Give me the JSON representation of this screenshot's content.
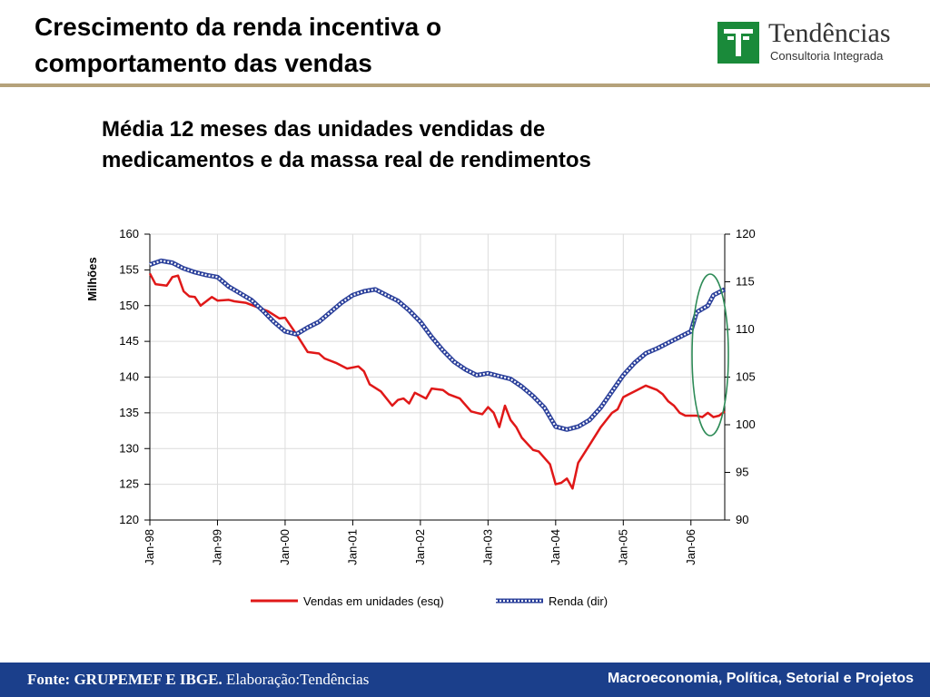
{
  "slide": {
    "title_line1": "Crescimento da renda incentiva o",
    "title_line2": "comportamento das vendas"
  },
  "logo": {
    "name": "Tendências",
    "subtitle": "Consultoria Integrada",
    "color": "#1a8a3a"
  },
  "footer": {
    "source_bold": "Fonte: GRUPEMEF E IBGE.",
    "source_rest": " Elaboração:Tendências",
    "tagline": "Macroeconomia, Política, Setorial e Projetos",
    "background": "#1b3f8b"
  },
  "chart_data": {
    "type": "line",
    "title_line1": "Média 12 meses das unidades vendidas de",
    "title_line2": "medicamentos e da massa real de rendimentos",
    "ylabel": "Milhões",
    "y2label": "",
    "ylim": [
      120,
      160
    ],
    "yticks": [
      120,
      125,
      130,
      135,
      140,
      145,
      150,
      155,
      160
    ],
    "y2lim": [
      90,
      120
    ],
    "y2ticks": [
      90,
      95,
      100,
      105,
      110,
      115,
      120
    ],
    "xlim": [
      "1998-01",
      "2006-07"
    ],
    "xticks": [
      "Jan-98",
      "Jan-99",
      "Jan-00",
      "Jan-01",
      "Jan-02",
      "Jan-03",
      "Jan-04",
      "Jan-05",
      "Jan-06"
    ],
    "grid": true,
    "legend_position": "bottom",
    "highlight": "ellipse around last months of 2006",
    "highlight_color": "#2e8b57",
    "series": [
      {
        "name": "Vendas em unidades (esq)",
        "axis": "left",
        "color": "#e01818",
        "style": "solid",
        "points": [
          [
            "1998-01",
            154.5
          ],
          [
            "1998-02",
            153.0
          ],
          [
            "1998-04",
            152.8
          ],
          [
            "1998-05",
            154.0
          ],
          [
            "1998-06",
            154.2
          ],
          [
            "1998-07",
            152.0
          ],
          [
            "1998-08",
            151.3
          ],
          [
            "1998-09",
            151.2
          ],
          [
            "1998-10",
            150.0
          ],
          [
            "1998-11",
            150.6
          ],
          [
            "1998-12",
            151.2
          ],
          [
            "1999-01",
            150.7
          ],
          [
            "1999-03",
            150.8
          ],
          [
            "1999-04",
            150.6
          ],
          [
            "1999-06",
            150.4
          ],
          [
            "1999-08",
            149.8
          ],
          [
            "1999-10",
            149.2
          ],
          [
            "1999-12",
            148.2
          ],
          [
            "2000-01",
            148.3
          ],
          [
            "2000-03",
            146.0
          ],
          [
            "2000-05",
            143.5
          ],
          [
            "2000-07",
            143.3
          ],
          [
            "2000-08",
            142.6
          ],
          [
            "2000-10",
            142.0
          ],
          [
            "2000-12",
            141.2
          ],
          [
            "2001-02",
            141.5
          ],
          [
            "2001-03",
            140.8
          ],
          [
            "2001-04",
            139.0
          ],
          [
            "2001-06",
            138.0
          ],
          [
            "2001-08",
            136.0
          ],
          [
            "2001-09",
            136.8
          ],
          [
            "2001-10",
            137.0
          ],
          [
            "2001-11",
            136.3
          ],
          [
            "2001-12",
            137.8
          ],
          [
            "2002-02",
            137.0
          ],
          [
            "2002-03",
            138.4
          ],
          [
            "2002-05",
            138.2
          ],
          [
            "2002-06",
            137.6
          ],
          [
            "2002-08",
            137.0
          ],
          [
            "2002-10",
            135.2
          ],
          [
            "2002-11",
            135.0
          ],
          [
            "2002-12",
            134.8
          ],
          [
            "2003-01",
            135.8
          ],
          [
            "2003-02",
            135.0
          ],
          [
            "2003-03",
            133.0
          ],
          [
            "2003-04",
            136.0
          ],
          [
            "2003-05",
            134.0
          ],
          [
            "2003-06",
            133.0
          ],
          [
            "2003-07",
            131.5
          ],
          [
            "2003-09",
            129.8
          ],
          [
            "2003-10",
            129.6
          ],
          [
            "2003-12",
            127.8
          ],
          [
            "2004-01",
            125.0
          ],
          [
            "2004-02",
            125.2
          ],
          [
            "2004-03",
            125.8
          ],
          [
            "2004-04",
            124.4
          ],
          [
            "2004-05",
            128.0
          ],
          [
            "2004-07",
            130.5
          ],
          [
            "2004-09",
            133.0
          ],
          [
            "2004-11",
            135.0
          ],
          [
            "2004-12",
            135.5
          ],
          [
            "2005-01",
            137.2
          ],
          [
            "2005-02",
            137.6
          ],
          [
            "2005-03",
            138.0
          ],
          [
            "2005-05",
            138.8
          ],
          [
            "2005-07",
            138.2
          ],
          [
            "2005-08",
            137.6
          ],
          [
            "2005-09",
            136.6
          ],
          [
            "2005-10",
            136.0
          ],
          [
            "2005-11",
            135.0
          ],
          [
            "2005-12",
            134.6
          ],
          [
            "2006-02",
            134.6
          ],
          [
            "2006-03",
            134.4
          ],
          [
            "2006-04",
            135.0
          ],
          [
            "2006-05",
            134.4
          ],
          [
            "2006-06",
            134.6
          ],
          [
            "2006-07",
            135.2
          ]
        ]
      },
      {
        "name": "Renda (dir)",
        "axis": "right",
        "color": "#6a7ec4",
        "style": "dotted",
        "points": [
          [
            "1998-01",
            116.8
          ],
          [
            "1998-03",
            117.2
          ],
          [
            "1998-05",
            117.0
          ],
          [
            "1998-07",
            116.4
          ],
          [
            "1998-09",
            116.0
          ],
          [
            "1998-11",
            115.7
          ],
          [
            "1999-01",
            115.5
          ],
          [
            "1999-03",
            114.5
          ],
          [
            "1999-05",
            113.8
          ],
          [
            "1999-07",
            113.1
          ],
          [
            "1999-09",
            112.0
          ],
          [
            "1999-11",
            110.8
          ],
          [
            "2000-01",
            109.8
          ],
          [
            "2000-03",
            109.5
          ],
          [
            "2000-05",
            110.2
          ],
          [
            "2000-07",
            110.8
          ],
          [
            "2000-09",
            111.8
          ],
          [
            "2000-11",
            112.8
          ],
          [
            "2001-01",
            113.6
          ],
          [
            "2001-03",
            114.0
          ],
          [
            "2001-05",
            114.2
          ],
          [
            "2001-07",
            113.6
          ],
          [
            "2001-09",
            113.0
          ],
          [
            "2001-11",
            112.0
          ],
          [
            "2002-01",
            110.8
          ],
          [
            "2002-03",
            109.2
          ],
          [
            "2002-05",
            107.8
          ],
          [
            "2002-07",
            106.6
          ],
          [
            "2002-09",
            105.8
          ],
          [
            "2002-11",
            105.2
          ],
          [
            "2003-01",
            105.4
          ],
          [
            "2003-03",
            105.1
          ],
          [
            "2003-05",
            104.8
          ],
          [
            "2003-07",
            104.0
          ],
          [
            "2003-09",
            103.0
          ],
          [
            "2003-11",
            101.8
          ],
          [
            "2004-01",
            99.8
          ],
          [
            "2004-03",
            99.5
          ],
          [
            "2004-05",
            99.8
          ],
          [
            "2004-07",
            100.5
          ],
          [
            "2004-09",
            101.8
          ],
          [
            "2004-11",
            103.5
          ],
          [
            "2005-01",
            105.2
          ],
          [
            "2005-03",
            106.5
          ],
          [
            "2005-05",
            107.5
          ],
          [
            "2005-07",
            108.0
          ],
          [
            "2005-09",
            108.6
          ],
          [
            "2005-11",
            109.2
          ],
          [
            "2006-01",
            109.8
          ],
          [
            "2006-02",
            111.8
          ],
          [
            "2006-04",
            112.5
          ],
          [
            "2006-05",
            113.6
          ],
          [
            "2006-07",
            114.2
          ]
        ]
      }
    ]
  }
}
